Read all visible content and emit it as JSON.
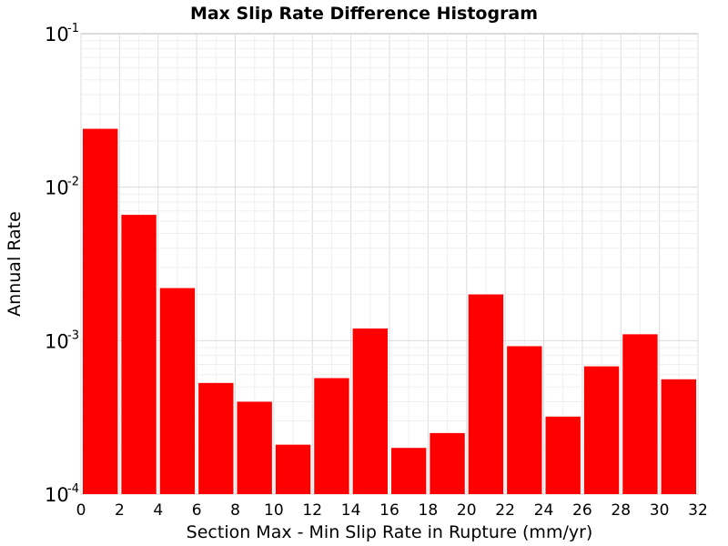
{
  "chart_data": {
    "type": "bar",
    "title": "Max Slip Rate Difference Histogram",
    "xlabel": "Section Max - Min Slip Rate in Rupture (mm/yr)",
    "ylabel": "Annual Rate",
    "yscale": "log",
    "xlim": [
      0,
      32
    ],
    "ylim": [
      0.0001,
      0.1
    ],
    "bin_width": 2,
    "x_ticks": [
      "0",
      "2",
      "4",
      "6",
      "8",
      "10",
      "12",
      "14",
      "16",
      "18",
      "20",
      "22",
      "24",
      "26",
      "28",
      "30",
      "32"
    ],
    "y_ticks": [
      {
        "base": "10",
        "exp": "-4",
        "value": 0.0001
      },
      {
        "base": "10",
        "exp": "-3",
        "value": 0.001
      },
      {
        "base": "10",
        "exp": "-2",
        "value": 0.01
      },
      {
        "base": "10",
        "exp": "-1",
        "value": 0.1
      }
    ],
    "grid": true,
    "bar_color": "#ff0000",
    "bins": [
      {
        "x0": 0,
        "x1": 2,
        "value": 0.024
      },
      {
        "x0": 2,
        "x1": 4,
        "value": 0.0066
      },
      {
        "x0": 4,
        "x1": 6,
        "value": 0.0022
      },
      {
        "x0": 6,
        "x1": 8,
        "value": 0.00053
      },
      {
        "x0": 8,
        "x1": 10,
        "value": 0.0004
      },
      {
        "x0": 10,
        "x1": 12,
        "value": 0.00021
      },
      {
        "x0": 12,
        "x1": 14,
        "value": 0.00057
      },
      {
        "x0": 14,
        "x1": 16,
        "value": 0.0012
      },
      {
        "x0": 16,
        "x1": 18,
        "value": 0.0002
      },
      {
        "x0": 18,
        "x1": 20,
        "value": 0.00025
      },
      {
        "x0": 20,
        "x1": 22,
        "value": 0.002
      },
      {
        "x0": 22,
        "x1": 24,
        "value": 0.00092
      },
      {
        "x0": 24,
        "x1": 26,
        "value": 0.00032
      },
      {
        "x0": 26,
        "x1": 28,
        "value": 0.00068
      },
      {
        "x0": 28,
        "x1": 30,
        "value": 0.0011
      },
      {
        "x0": 30,
        "x1": 32,
        "value": 0.00056
      }
    ]
  }
}
